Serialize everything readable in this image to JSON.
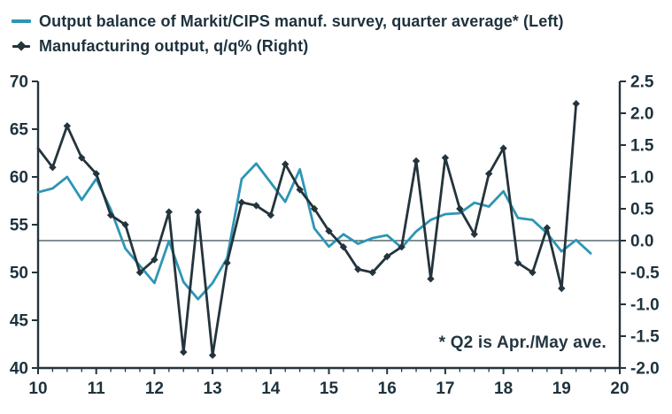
{
  "legend": {
    "items": [
      {
        "label": "Output balance of Markit/CIPS manuf. survey, quarter average* (Left)",
        "color": "#2E95B5",
        "marker": "line"
      },
      {
        "label": "Manufacturing output, q/q% (Right)",
        "color": "#24343C",
        "marker": "line-diamond"
      }
    ]
  },
  "annotation": "* Q2 is Apr./May ave.",
  "colors": {
    "series_left": "#2E95B5",
    "series_right": "#24343C",
    "axis": "#22343C",
    "tick_text": "#1E323D",
    "zero_line": "#394A54",
    "background": "#FFFFFF"
  },
  "chart_data": {
    "type": "line",
    "title": "",
    "x_axis": {
      "min": 10,
      "max": 20,
      "major_ticks": [
        10,
        11,
        12,
        13,
        14,
        15,
        16,
        17,
        18,
        19,
        20
      ],
      "tick_labels": [
        "10",
        "11",
        "12",
        "13",
        "14",
        "15",
        "16",
        "17",
        "18",
        "19",
        "20"
      ],
      "minor_tick_step": 0.25
    },
    "left_axis": {
      "min": 40,
      "max": 70,
      "ticks": [
        40,
        45,
        50,
        55,
        60,
        65,
        70
      ],
      "tick_labels": [
        "40",
        "45",
        "50",
        "55",
        "60",
        "65",
        "70"
      ]
    },
    "right_axis": {
      "min": -2.0,
      "max": 2.5,
      "ticks": [
        2.5,
        2.0,
        1.5,
        1.0,
        0.5,
        0.0,
        -0.5,
        -1.0,
        -1.5,
        -2.0
      ],
      "tick_labels": [
        "2.5",
        "2.0",
        "1.5",
        "1.0",
        "0.5",
        "0.0",
        "-0.5",
        "-1.0",
        "-1.5",
        "-2.0"
      ]
    },
    "zero_reference_line_right_value": 0.0,
    "grid": false,
    "legend_position": "top-left",
    "series": [
      {
        "name": "Output balance of Markit/CIPS manuf. survey, quarter average* (Left)",
        "axis": "left",
        "color": "#2E95B5",
        "marker": "none",
        "x": [
          10.0,
          10.25,
          10.5,
          10.75,
          11.0,
          11.25,
          11.5,
          11.75,
          12.0,
          12.25,
          12.5,
          12.75,
          13.0,
          13.25,
          13.5,
          13.75,
          14.0,
          14.25,
          14.5,
          14.75,
          15.0,
          15.25,
          15.5,
          15.75,
          16.0,
          16.25,
          16.5,
          16.75,
          17.0,
          17.25,
          17.5,
          17.75,
          18.0,
          18.25,
          18.5,
          18.75,
          19.0,
          19.25,
          19.5
        ],
        "y": [
          58.4,
          58.8,
          60.0,
          57.6,
          59.8,
          56.6,
          52.5,
          50.7,
          48.9,
          53.3,
          49.0,
          47.2,
          48.9,
          51.5,
          59.8,
          61.4,
          59.4,
          57.4,
          60.8,
          54.6,
          52.7,
          54.0,
          53.0,
          53.6,
          53.9,
          52.6,
          54.3,
          55.5,
          56.1,
          56.2,
          57.3,
          56.9,
          58.5,
          55.7,
          55.5,
          54.1,
          52.2,
          53.4,
          52.0
        ]
      },
      {
        "name": "Manufacturing output, q/q% (Right)",
        "axis": "right",
        "color": "#24343C",
        "marker": "diamond",
        "x": [
          10.0,
          10.25,
          10.5,
          10.75,
          11.0,
          11.25,
          11.5,
          11.75,
          12.0,
          12.25,
          12.5,
          12.75,
          13.0,
          13.25,
          13.5,
          13.75,
          14.0,
          14.25,
          14.5,
          14.75,
          15.0,
          15.25,
          15.5,
          15.75,
          16.0,
          16.25,
          16.5,
          16.75,
          17.0,
          17.25,
          17.5,
          17.75,
          18.0,
          18.25,
          18.5,
          18.75,
          19.0,
          19.25
        ],
        "y": [
          1.45,
          1.15,
          1.8,
          1.3,
          1.05,
          0.4,
          0.25,
          -0.5,
          -0.3,
          0.45,
          -1.75,
          0.45,
          -1.8,
          -0.35,
          0.6,
          0.55,
          0.4,
          1.2,
          0.8,
          0.5,
          0.15,
          -0.1,
          -0.45,
          -0.5,
          -0.25,
          -0.1,
          1.25,
          -0.6,
          1.3,
          0.5,
          0.1,
          1.05,
          1.45,
          -0.35,
          -0.5,
          0.2,
          -0.75,
          2.15
        ]
      }
    ]
  }
}
